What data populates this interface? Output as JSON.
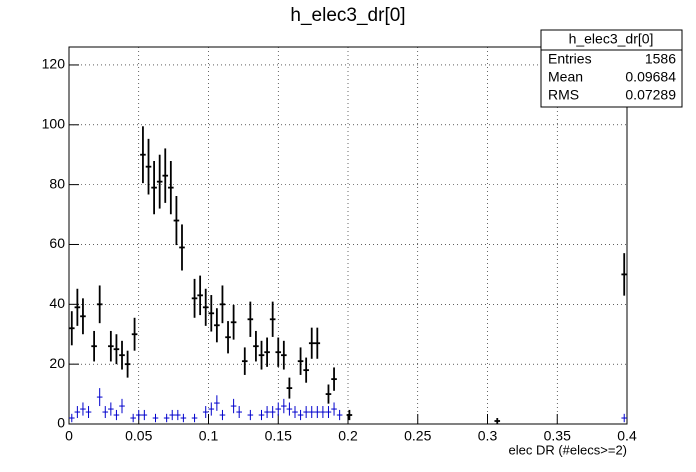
{
  "chart_data": {
    "type": "errorbar",
    "title": "h_elec3_dr[0]",
    "x_label": "elec DR (#elecs>=2)",
    "xlim": [
      0,
      0.4
    ],
    "ylim": [
      0,
      126
    ],
    "xticks": [
      0,
      0.05,
      0.1,
      0.15,
      0.2,
      0.25,
      0.3,
      0.35,
      0.4
    ],
    "yticks": [
      0,
      20,
      40,
      60,
      80,
      100,
      120
    ],
    "grid": true,
    "series": [
      {
        "color": "#000000",
        "x": [
          0.002,
          0.006,
          0.01,
          0.018,
          0.022,
          0.03,
          0.034,
          0.038,
          0.042,
          0.047,
          0.053,
          0.057,
          0.061,
          0.065,
          0.069,
          0.073,
          0.077,
          0.081,
          0.09,
          0.094,
          0.098,
          0.102,
          0.106,
          0.11,
          0.114,
          0.118,
          0.126,
          0.13,
          0.134,
          0.138,
          0.142,
          0.146,
          0.15,
          0.154,
          0.158,
          0.174,
          0.178,
          0.17,
          0.166,
          0.186,
          0.19,
          0.201,
          0.307,
          0.398
        ],
        "values": [
          32,
          39,
          36,
          26,
          40,
          26,
          25,
          23,
          20,
          30,
          90,
          86,
          79,
          81,
          83,
          79,
          68,
          59,
          42,
          43,
          39,
          37,
          33,
          40,
          29,
          34,
          21,
          35,
          26,
          23,
          24,
          35,
          24,
          23,
          12,
          27,
          27,
          18,
          21,
          10,
          15,
          3,
          1,
          50
        ],
        "errors": [
          5.7,
          6.2,
          6.0,
          5.1,
          6.3,
          5.1,
          5.0,
          4.8,
          4.5,
          5.5,
          9.5,
          9.3,
          8.9,
          9.0,
          9.1,
          8.9,
          8.2,
          7.7,
          6.5,
          6.6,
          6.2,
          6.1,
          5.7,
          6.3,
          5.4,
          5.8,
          4.6,
          5.9,
          5.1,
          4.8,
          4.9,
          5.9,
          4.9,
          4.8,
          3.5,
          5.2,
          5.2,
          4.2,
          4.6,
          3.2,
          3.9,
          1.7,
          1.0,
          7.1
        ]
      },
      {
        "color": "#0000cc",
        "x": [
          0.002,
          0.006,
          0.01,
          0.014,
          0.022,
          0.026,
          0.03,
          0.034,
          0.038,
          0.046,
          0.05,
          0.054,
          0.062,
          0.07,
          0.074,
          0.078,
          0.082,
          0.09,
          0.098,
          0.102,
          0.106,
          0.11,
          0.118,
          0.122,
          0.13,
          0.138,
          0.142,
          0.146,
          0.15,
          0.154,
          0.158,
          0.162,
          0.166,
          0.17,
          0.174,
          0.178,
          0.182,
          0.186,
          0.19,
          0.194,
          0.398
        ],
        "values": [
          2,
          4,
          5,
          4,
          9,
          4,
          5,
          3,
          6,
          2,
          3,
          3,
          2,
          2,
          3,
          3,
          2,
          2,
          4,
          5,
          7,
          3,
          6,
          4,
          3,
          3,
          4,
          4,
          5,
          6,
          5,
          4,
          3,
          4,
          4,
          4,
          4,
          4,
          5,
          3,
          2
        ],
        "errors": [
          1.4,
          2,
          2.2,
          2,
          3,
          2,
          2.2,
          1.7,
          2.4,
          1.4,
          1.7,
          1.7,
          1.4,
          1.4,
          1.7,
          1.7,
          1.4,
          1.4,
          2,
          2.2,
          2.6,
          1.7,
          2.4,
          2,
          1.7,
          1.7,
          2,
          2,
          2.2,
          2.4,
          2.2,
          2,
          1.7,
          2,
          2,
          2,
          2,
          2,
          2.2,
          1.7,
          1.4
        ]
      }
    ],
    "stats": {
      "title": "h_elec3_dr[0]",
      "rows": [
        {
          "label": "Entries",
          "value": 1586
        },
        {
          "label": "Mean",
          "value": 0.09684
        },
        {
          "label": "RMS",
          "value": 0.07289
        }
      ]
    }
  }
}
